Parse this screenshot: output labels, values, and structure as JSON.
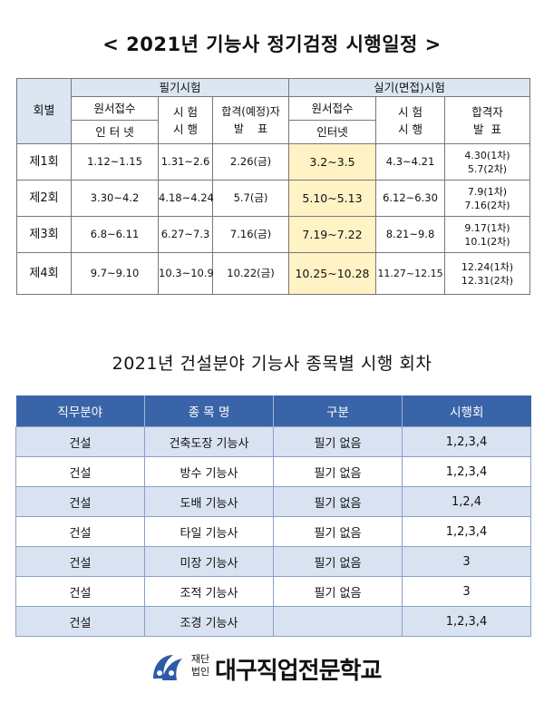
{
  "schedule": {
    "title": "< 2021년 기능사 정기검정 시행일정 >",
    "headers": {
      "round": "회별",
      "written_group": "필기시험",
      "practical_group": "실기(면접)시험",
      "apply": "원서접수",
      "online": "인 터 넷",
      "online2": "인터넷",
      "exam_line1": "시 험",
      "exam_line2": "시 행",
      "written_result_line1": "합격(예정)자",
      "written_result_line2": "발    표",
      "practical_result_line1": "합격자",
      "practical_result_line2": "발  표"
    },
    "rows": [
      {
        "round": "제1회",
        "w_apply": "1.12~1.15",
        "w_exam": "1.31~2.6",
        "w_result": "2.26(금)",
        "p_apply": "3.2~3.5",
        "p_exam": "4.3~4.21",
        "p_result1": "4.30(1차)",
        "p_result2": "5.7(2차)"
      },
      {
        "round": "제2회",
        "w_apply": "3.30~4.2",
        "w_exam": "4.18~4.24",
        "w_result": "5.7(금)",
        "p_apply": "5.10~5.13",
        "p_exam": "6.12~6.30",
        "p_result1": "7.9(1차)",
        "p_result2": "7.16(2차)"
      },
      {
        "round": "제3회",
        "w_apply": "6.8~6.11",
        "w_exam": "6.27~7.3",
        "w_result": "7.16(금)",
        "p_apply": "7.19~7.22",
        "p_exam": "8.21~9.8",
        "p_result1": "9.17(1차)",
        "p_result2": "10.1(2차)"
      },
      {
        "round": "제4회",
        "w_apply": "9.7~9.10",
        "w_exam": "10.3~10.9",
        "w_result": "10.22(금)",
        "p_apply": "10.25~10.28",
        "p_exam": "11.27~12.15",
        "p_result1": "12.24(1차)",
        "p_result2": "12.31(2차)"
      }
    ],
    "highlight_color": "#fff2c4"
  },
  "subjects": {
    "title": "2021년 건설분야 기능사 종목별 시행 회차",
    "columns": [
      "직무분야",
      "종 목 명",
      "구분",
      "시행회"
    ],
    "rows": [
      {
        "field": "건설",
        "name": "건축도장 기능사",
        "type": "필기 없음",
        "rounds": "1,2,3,4"
      },
      {
        "field": "건설",
        "name": "방수 기능사",
        "type": "필기 없음",
        "rounds": "1,2,3,4"
      },
      {
        "field": "건설",
        "name": "도배 기능사",
        "type": "필기 없음",
        "rounds": "1,2,4"
      },
      {
        "field": "건설",
        "name": "타일 기능사",
        "type": "필기 없음",
        "rounds": "1,2,3,4"
      },
      {
        "field": "건설",
        "name": "미장 기능사",
        "type": "필기 없음",
        "rounds": "3"
      },
      {
        "field": "건설",
        "name": "조적 기능사",
        "type": "필기 없음",
        "rounds": "3"
      },
      {
        "field": "건설",
        "name": "조경 기능사",
        "type": "",
        "rounds": "1,2,3,4"
      }
    ],
    "header_color": "#3a64a8",
    "stripe_color": "#d9e2f1"
  },
  "footer": {
    "legal_line1": "재단",
    "legal_line2": "법인",
    "org_name": "대구직업전문학교",
    "logo_icon": "school-emblem-icon"
  }
}
